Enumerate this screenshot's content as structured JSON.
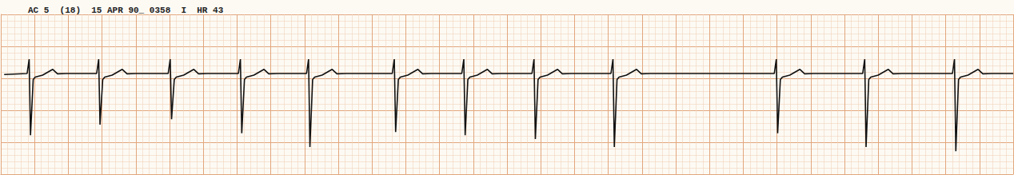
{
  "chart_data": {
    "type": "line",
    "title": "AC 5  (18)  15 APR 90_ 0358  I  HR 43",
    "x": [
      0.5,
      3.9,
      4.2,
      4.4,
      4.8,
      5.1,
      6.2,
      7.7,
      8.4,
      9.7,
      14.2,
      14.5,
      14.7,
      15.1,
      15.4,
      16.5,
      18.0,
      18.7,
      20.0,
      24.8,
      25.1,
      25.3,
      25.7,
      26.0,
      27.1,
      28.6,
      29.3,
      30.6,
      35.2,
      35.5,
      35.7,
      36.1,
      36.4,
      37.5,
      39.0,
      39.7,
      41.0,
      45.3,
      45.6,
      45.8,
      46.2,
      46.5,
      47.6,
      49.1,
      49.8,
      51.1,
      58.0,
      58.3,
      58.5,
      58.9,
      59.2,
      60.3,
      61.8,
      62.5,
      63.8,
      68.3,
      68.6,
      68.8,
      69.2,
      69.5,
      70.6,
      72.1,
      72.8,
      74.1,
      78.7,
      79.0,
      79.2,
      79.6,
      79.9,
      81.0,
      82.5,
      83.2,
      84.5,
      90.4,
      90.7,
      90.9,
      91.3,
      91.6,
      92.7,
      94.2,
      94.9,
      96.2,
      114.6,
      114.9,
      115.1,
      115.5,
      115.8,
      116.9,
      118.4,
      119.1,
      120.4,
      127.7,
      128.0,
      128.2,
      128.6,
      128.9,
      130.0,
      131.5,
      132.2,
      133.5,
      141.0,
      141.3,
      141.5,
      141.9,
      142.2,
      143.3,
      144.8,
      145.5,
      146.8,
      150
    ],
    "values": [
      15.6,
      15.75,
      18,
      6.1,
      14.8,
      15.2,
      15.5,
      16.4,
      15.7,
      15.75,
      15.75,
      18,
      7.75,
      14.8,
      15.2,
      15.5,
      16.4,
      15.7,
      15.75,
      15.75,
      18,
      8.6,
      14.8,
      15.2,
      15.5,
      16.4,
      15.7,
      15.75,
      15.75,
      18,
      6.4,
      14.8,
      15.2,
      15.5,
      16.4,
      15.7,
      15.75,
      15.75,
      18,
      4.25,
      14.8,
      15.2,
      15.5,
      16.4,
      15.7,
      15.75,
      15.75,
      18,
      6.6,
      14.8,
      15.2,
      15.5,
      16.4,
      15.7,
      15.75,
      15.75,
      18,
      6.1,
      14.8,
      15.2,
      15.5,
      16.4,
      15.7,
      15.75,
      15.75,
      18,
      5.5,
      14.8,
      15.2,
      15.5,
      16.4,
      15.7,
      15.75,
      15.75,
      18,
      4.25,
      14.8,
      15.2,
      15.5,
      16.4,
      15.7,
      15.75,
      15.75,
      18,
      6.4,
      14.8,
      15.2,
      15.5,
      16.4,
      15.7,
      15.75,
      15.75,
      18,
      4.25,
      14.8,
      15.2,
      15.5,
      16.4,
      15.7,
      15.75,
      15.75,
      18,
      3.6,
      14.8,
      15.2,
      15.5,
      16.4,
      15.7,
      15.75,
      15.75
    ],
    "color": "#111111",
    "xlim": [
      0,
      150
    ],
    "ylim": [
      0,
      25
    ],
    "xticks": [
      0,
      5,
      10,
      15,
      20,
      25,
      30,
      35,
      40,
      45,
      50,
      55,
      60,
      65,
      70,
      75,
      80,
      85,
      90,
      95,
      100,
      105,
      110,
      115,
      120,
      125,
      130,
      135,
      140,
      145,
      150
    ],
    "yticks": [
      0,
      5,
      10,
      15,
      20,
      25
    ],
    "grid": true,
    "tick_labels": false
  }
}
